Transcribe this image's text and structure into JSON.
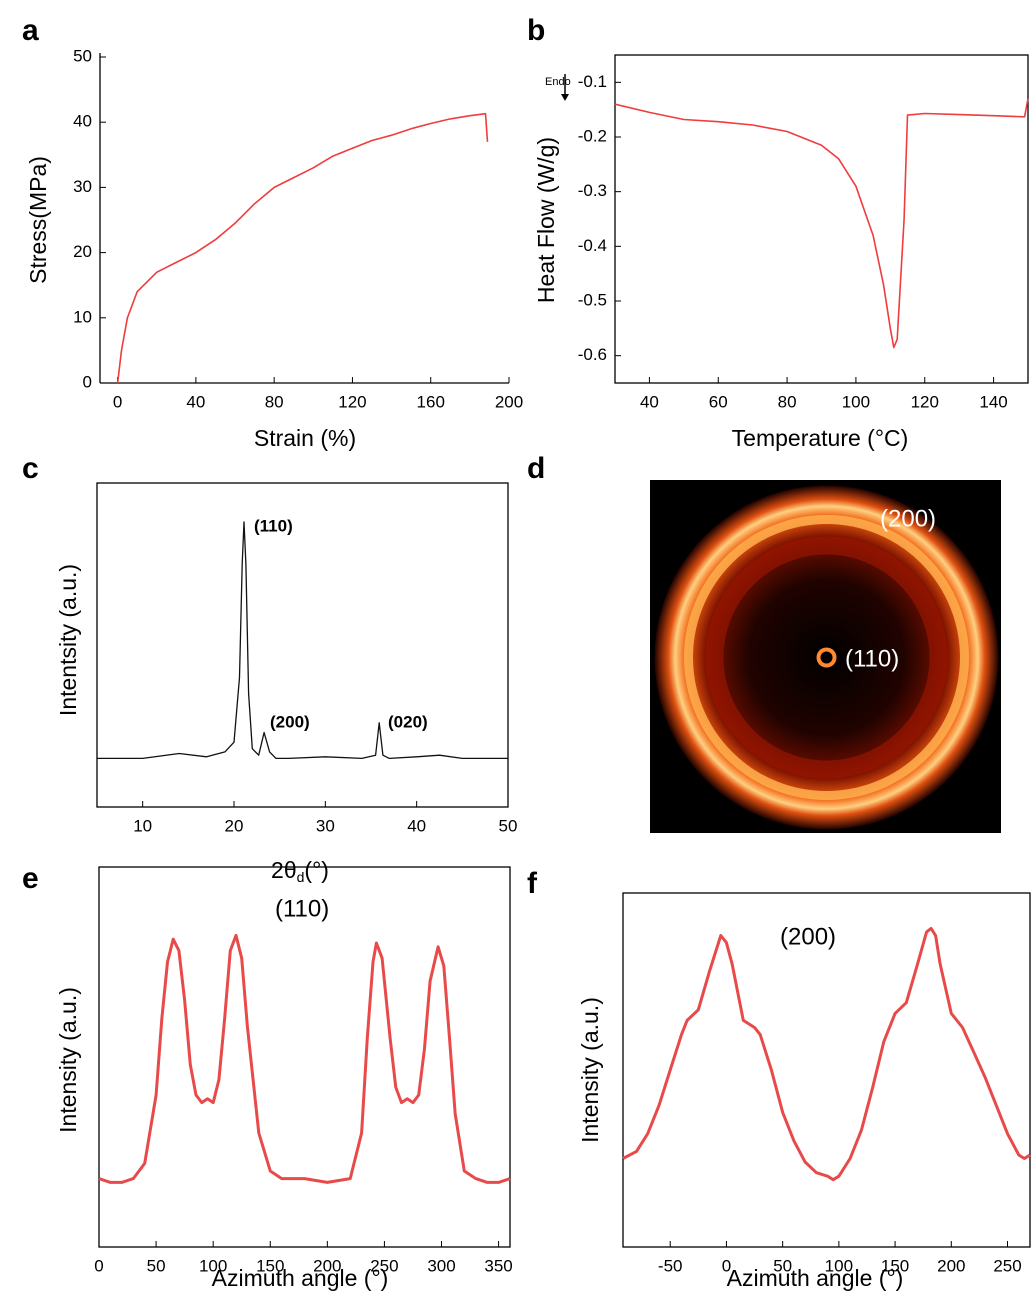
{
  "chart_data": [
    {
      "type": "line",
      "label": "a",
      "x_label": "Strain (%)",
      "y_label": "Stress(MPa)",
      "color": "#f03c3c",
      "xlim": [
        -9,
        200
      ],
      "ylim": [
        0,
        50
      ],
      "xticks": [
        0,
        40,
        80,
        120,
        160,
        200
      ],
      "yticks": [
        0,
        10,
        20,
        30,
        40,
        50
      ],
      "x": [
        0,
        2,
        5,
        10,
        20,
        30,
        40,
        50,
        60,
        70,
        80,
        90,
        100,
        110,
        120,
        130,
        140,
        150,
        160,
        170,
        180,
        188,
        189
      ],
      "values": [
        0,
        5,
        10,
        14,
        17,
        18.5,
        20,
        22,
        24.5,
        27.5,
        30,
        31.5,
        33,
        34.8,
        36,
        37.2,
        38,
        39,
        39.8,
        40.5,
        41,
        41.3,
        37
      ]
    },
    {
      "type": "line",
      "label": "b",
      "x_label": "Temperature (°C)",
      "y_label": "Heat Flow (W/g)",
      "color": "#f03c3c",
      "annotations": [
        "Endo"
      ],
      "xlim": [
        30,
        150
      ],
      "ylim": [
        -0.65,
        -0.05
      ],
      "xticks": [
        40,
        60,
        80,
        100,
        120,
        140
      ],
      "yticks": [
        -0.1,
        -0.2,
        -0.3,
        -0.4,
        -0.5,
        -0.6
      ],
      "x": [
        30,
        40,
        50,
        60,
        70,
        80,
        90,
        95,
        100,
        105,
        108,
        110,
        111,
        112,
        114,
        115,
        120,
        130,
        140,
        149,
        150
      ],
      "values": [
        -0.14,
        -0.155,
        -0.168,
        -0.172,
        -0.178,
        -0.19,
        -0.215,
        -0.24,
        -0.29,
        -0.38,
        -0.47,
        -0.55,
        -0.585,
        -0.57,
        -0.35,
        -0.16,
        -0.157,
        -0.159,
        -0.161,
        -0.163,
        -0.13
      ]
    },
    {
      "type": "line",
      "label": "c",
      "x_label": [
        "2θ",
        "d",
        "(°)"
      ],
      "y_label": "Intentsity (a.u.)",
      "color": "#111111",
      "annotations": [
        "(110)",
        "(200)",
        "(020)"
      ],
      "xlim": [
        5,
        50
      ],
      "ylim": [
        0,
        100
      ],
      "xticks": [
        10,
        20,
        30,
        40,
        50
      ],
      "x": [
        5,
        10,
        14,
        17,
        19,
        20,
        20.6,
        20.9,
        21.1,
        21.3,
        21.6,
        22,
        22.7,
        23.3,
        23.9,
        24.6,
        26,
        30,
        34,
        35.5,
        35.9,
        36.3,
        37,
        40,
        42.5,
        45,
        50
      ],
      "values": [
        15,
        15,
        16.5,
        15.5,
        17,
        20,
        40,
        75,
        88,
        75,
        35,
        18,
        16,
        23,
        17,
        15,
        15,
        15.5,
        15,
        16,
        26,
        16,
        15,
        15.5,
        16,
        15,
        15
      ]
    },
    {
      "type": "image",
      "label": "d",
      "annotations": [
        "(200)",
        "(110)"
      ]
    },
    {
      "type": "line",
      "label": "e",
      "x_label": "Azimuth angle (°)",
      "y_label": "Intensity (a.u.)",
      "color": "#e84a4a",
      "annotations": [
        "(110)"
      ],
      "xlim": [
        0,
        360
      ],
      "ylim": [
        0,
        100
      ],
      "xticks": [
        0,
        50,
        100,
        150,
        200,
        250,
        300,
        350
      ],
      "x": [
        0,
        10,
        20,
        30,
        40,
        50,
        55,
        60,
        65,
        70,
        75,
        80,
        85,
        90,
        95,
        100,
        105,
        110,
        115,
        120,
        125,
        130,
        140,
        150,
        160,
        180,
        200,
        220,
        230,
        235,
        240,
        243,
        248,
        255,
        260,
        265,
        270,
        275,
        280,
        285,
        290,
        297,
        302,
        307,
        312,
        320,
        330,
        340,
        350,
        360
      ],
      "values": [
        18,
        17,
        17,
        18,
        22,
        40,
        60,
        75,
        81,
        78,
        65,
        48,
        40,
        38,
        39,
        38,
        44,
        60,
        78,
        82,
        76,
        58,
        30,
        20,
        18,
        18,
        17,
        18,
        30,
        55,
        75,
        80,
        76,
        55,
        42,
        38,
        39,
        38,
        40,
        52,
        70,
        79,
        74,
        55,
        35,
        20,
        18,
        17,
        17,
        18
      ]
    },
    {
      "type": "line",
      "label": "f",
      "x_label": "Azimuth angle (°)",
      "y_label": "Intensity (a.u.)",
      "color": "#e84a4a",
      "annotations": [
        "(200)"
      ],
      "xlim": [
        -92,
        270
      ],
      "ylim": [
        0,
        100
      ],
      "xticks": [
        -50,
        0,
        50,
        100,
        150,
        200,
        250
      ],
      "x": [
        -92,
        -80,
        -70,
        -60,
        -50,
        -40,
        -35,
        -25,
        -15,
        -5,
        0,
        5,
        15,
        25,
        30,
        40,
        50,
        60,
        70,
        80,
        90,
        95,
        100,
        110,
        120,
        130,
        140,
        150,
        160,
        170,
        178,
        182,
        186,
        190,
        200,
        210,
        220,
        230,
        240,
        250,
        260,
        265,
        270
      ],
      "values": [
        25,
        27,
        32,
        40,
        50,
        60,
        64,
        67,
        78,
        88,
        86,
        80,
        64,
        62,
        60,
        50,
        38,
        30,
        24,
        21,
        20,
        19,
        20,
        25,
        33,
        45,
        58,
        66,
        69,
        80,
        89,
        90,
        88,
        80,
        66,
        62,
        55,
        48,
        40,
        32,
        26,
        25,
        26
      ]
    }
  ]
}
